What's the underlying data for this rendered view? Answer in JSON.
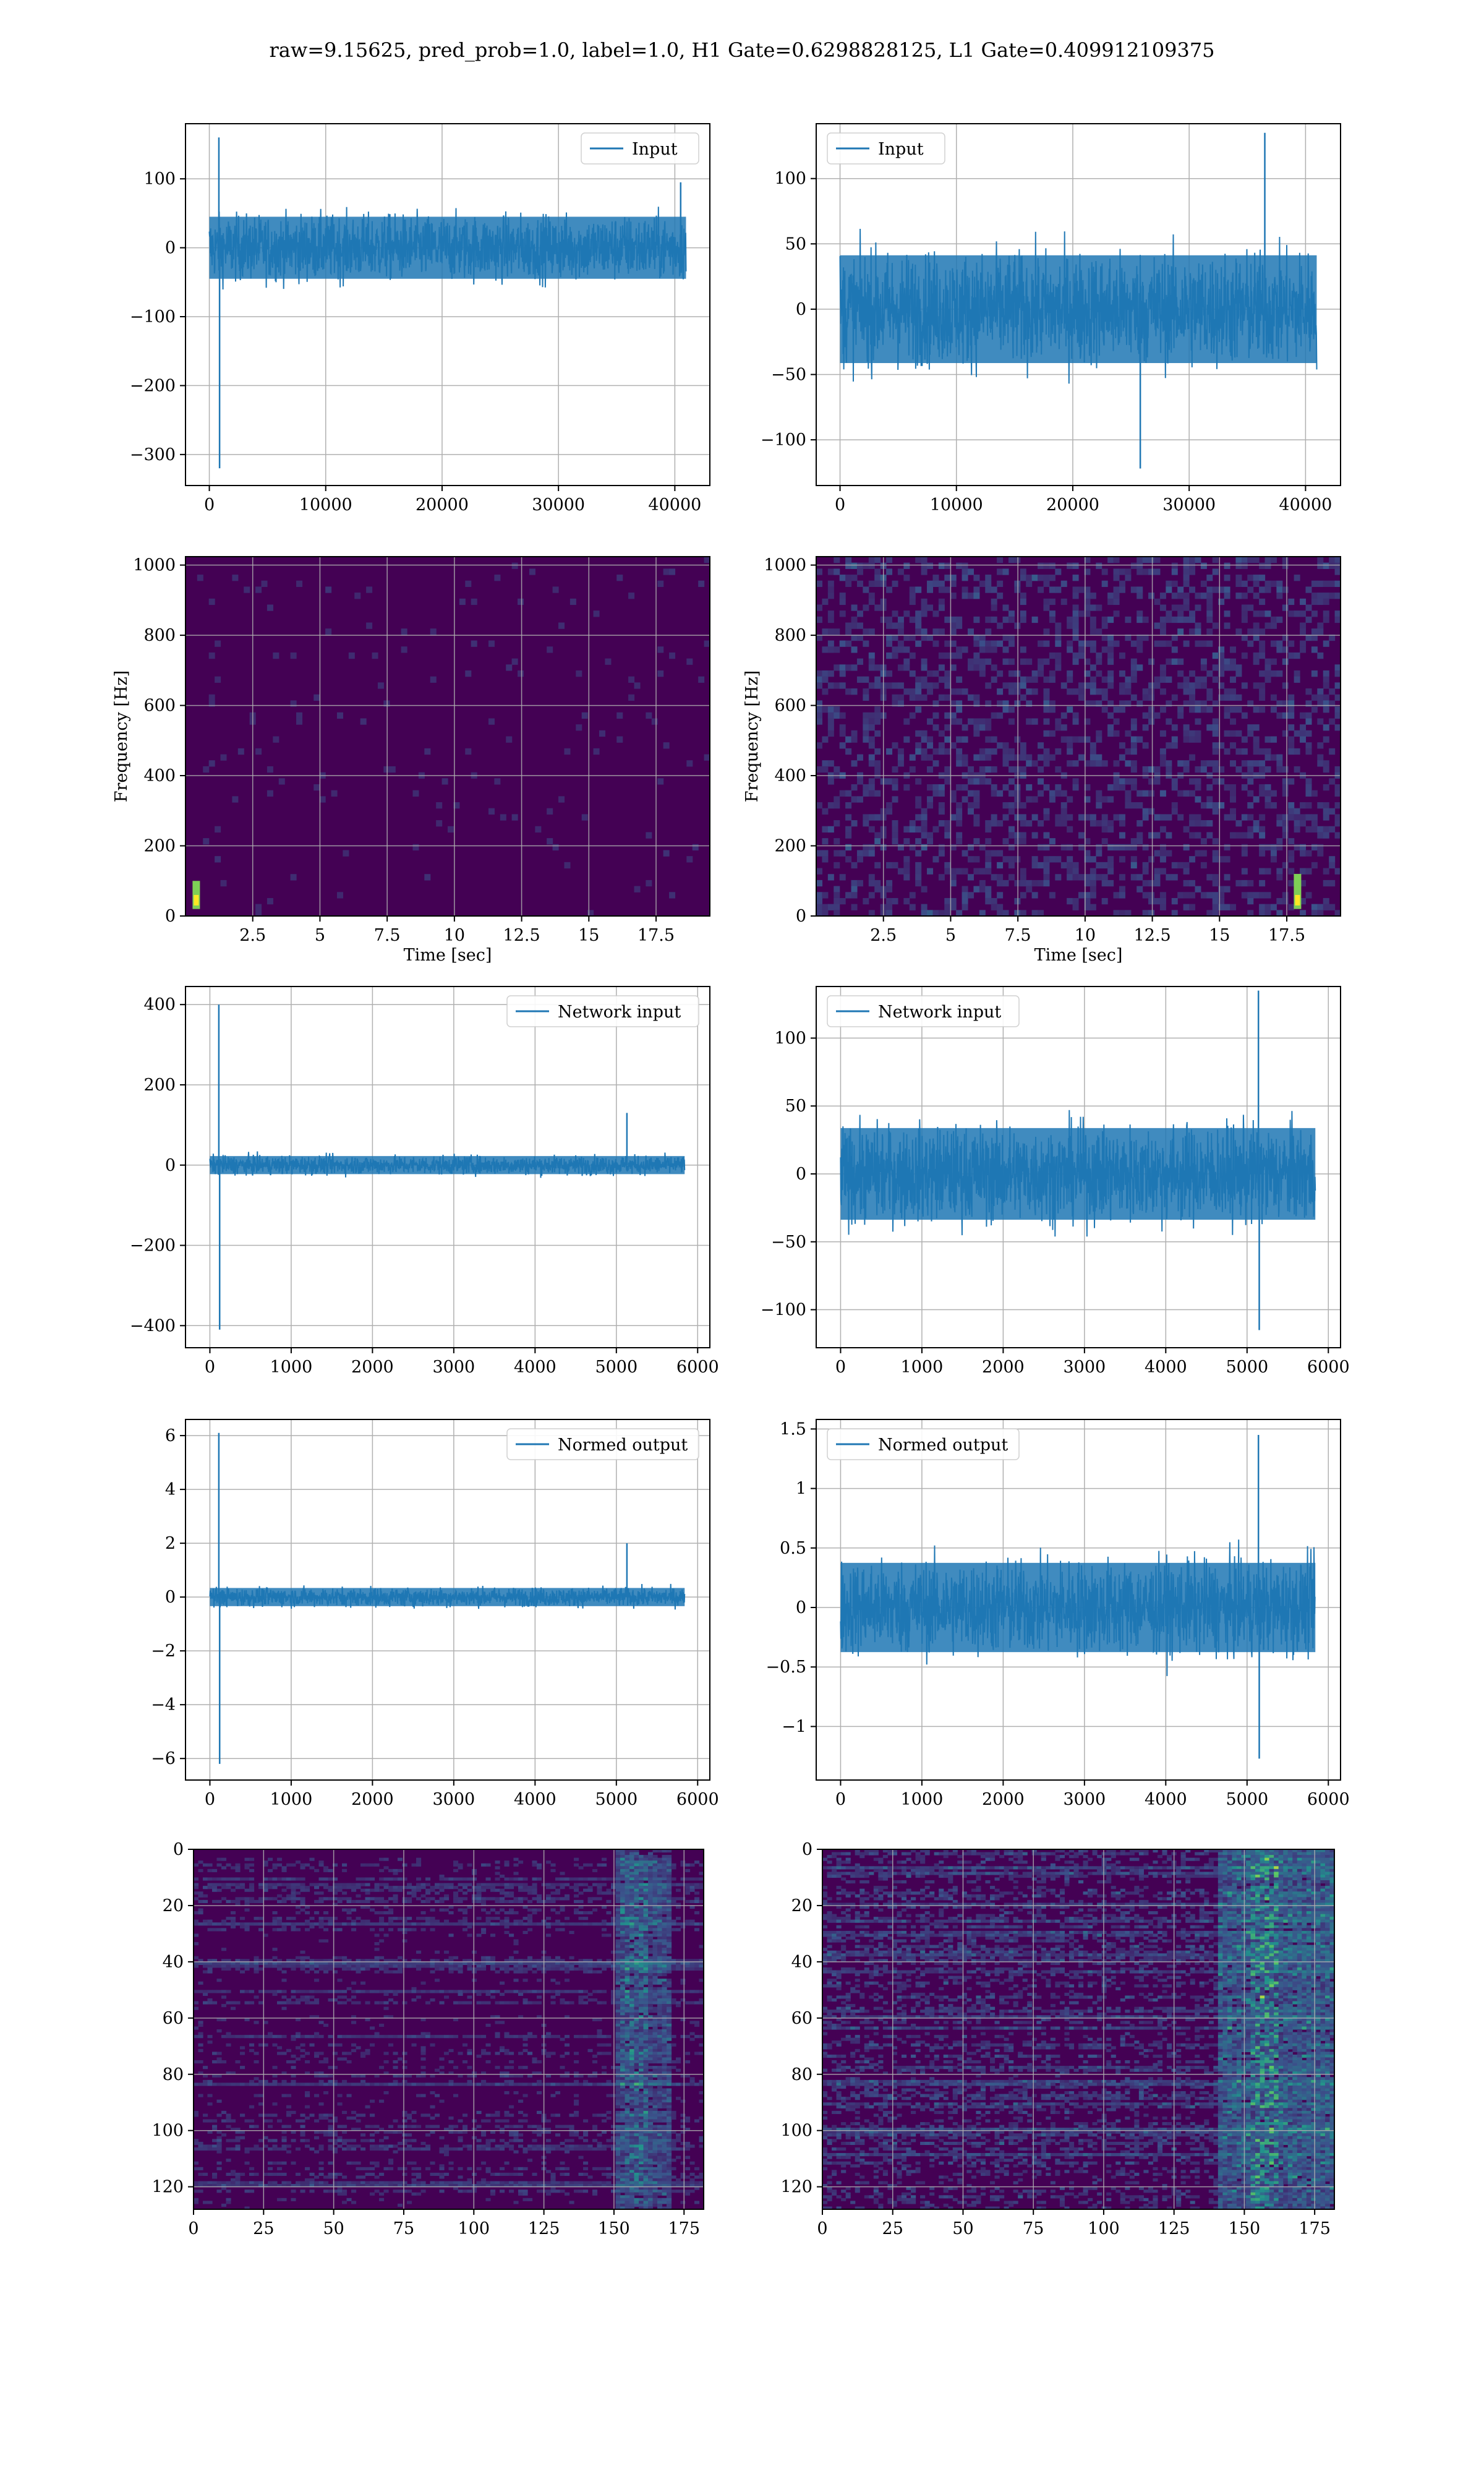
{
  "title": "raw=9.15625, pred_prob=1.0, label=1.0, H1 Gate=0.6298828125, L1 Gate=0.409912109375",
  "colors": {
    "line": "#1f77b4",
    "viridis_dark": "#440154",
    "viridis_mid": "#21918c",
    "viridis_bright": "#fde725",
    "grid": "#b0b0b0"
  },
  "chart_data": [
    {
      "id": "input-h1",
      "type": "line",
      "legend": "Input",
      "xlim": [
        -2048,
        43008
      ],
      "ylim": [
        -345,
        180
      ],
      "xticks": [
        0,
        10000,
        20000,
        30000,
        40000
      ],
      "yticks": [
        -300,
        -200,
        -100,
        0,
        100
      ],
      "series": [
        {
          "length": 40960,
          "amplitude": 60,
          "spikes": [
            {
              "x": 820,
              "y": 160
            },
            {
              "x": 880,
              "y": -320
            },
            {
              "x": 40500,
              "y": 95
            }
          ]
        }
      ]
    },
    {
      "id": "input-l1",
      "type": "line",
      "legend": "Input",
      "xlim": [
        -2048,
        43008
      ],
      "ylim": [
        -135,
        142
      ],
      "xticks": [
        0,
        10000,
        20000,
        30000,
        40000
      ],
      "yticks": [
        -100,
        -50,
        0,
        50,
        100
      ],
      "series": [
        {
          "length": 40960,
          "amplitude": 55,
          "spikes": [
            {
              "x": 36500,
              "y": 135
            },
            {
              "x": 25800,
              "y": -122
            }
          ]
        }
      ]
    },
    {
      "id": "spectrogram-h1",
      "type": "heatmap",
      "xlabel": "Time [sec]",
      "ylabel": "Frequency [Hz]",
      "xlim": [
        0,
        19.5
      ],
      "ylim": [
        0,
        1024
      ],
      "xticks": [
        2.5,
        5.0,
        7.5,
        10.0,
        12.5,
        15.0,
        17.5
      ],
      "yticks": [
        0,
        200,
        400,
        600,
        800,
        1000
      ],
      "intensity": 0.25,
      "chirp": {
        "t": 0.4,
        "f_max": 100
      }
    },
    {
      "id": "spectrogram-l1",
      "type": "heatmap",
      "xlabel": "Time [sec]",
      "ylabel": "Frequency [Hz]",
      "xlim": [
        0,
        19.5
      ],
      "ylim": [
        0,
        1024
      ],
      "xticks": [
        2.5,
        5.0,
        7.5,
        10.0,
        12.5,
        15.0,
        17.5
      ],
      "yticks": [
        0,
        200,
        400,
        600,
        800,
        1000
      ],
      "intensity": 0.55,
      "chirp": {
        "t": 17.9,
        "f_max": 120
      }
    },
    {
      "id": "network-input-h1",
      "type": "line",
      "legend": "Network input",
      "xlim": [
        -300,
        6150
      ],
      "ylim": [
        -455,
        445
      ],
      "xticks": [
        0,
        1000,
        2000,
        3000,
        4000,
        5000,
        6000
      ],
      "yticks": [
        -400,
        -200,
        0,
        200,
        400
      ],
      "series": [
        {
          "length": 5840,
          "amplitude": 30,
          "spikes": [
            {
              "x": 110,
              "y": 400
            },
            {
              "x": 120,
              "y": -410
            },
            {
              "x": 5130,
              "y": 130
            }
          ]
        }
      ]
    },
    {
      "id": "network-input-l1",
      "type": "line",
      "legend": "Network input",
      "xlim": [
        -300,
        6150
      ],
      "ylim": [
        -128,
        138
      ],
      "xticks": [
        0,
        1000,
        2000,
        3000,
        4000,
        5000,
        6000
      ],
      "yticks": [
        -100,
        -50,
        0,
        50,
        100
      ],
      "series": [
        {
          "length": 5840,
          "amplitude": 45,
          "spikes": [
            {
              "x": 5140,
              "y": 135
            },
            {
              "x": 5150,
              "y": -115
            }
          ]
        }
      ]
    },
    {
      "id": "normed-output-h1",
      "type": "line",
      "legend": "Normed output",
      "xlim": [
        -300,
        6150
      ],
      "ylim": [
        -6.8,
        6.6
      ],
      "xticks": [
        0,
        1000,
        2000,
        3000,
        4000,
        5000,
        6000
      ],
      "yticks": [
        -6,
        -4,
        -2,
        0,
        2,
        4,
        6
      ],
      "series": [
        {
          "length": 5840,
          "amplitude": 0.45,
          "spikes": [
            {
              "x": 110,
              "y": 6.1
            },
            {
              "x": 120,
              "y": -6.2
            },
            {
              "x": 5130,
              "y": 2.0
            }
          ]
        }
      ]
    },
    {
      "id": "normed-output-l1",
      "type": "line",
      "legend": "Normed output",
      "xlim": [
        -300,
        6150
      ],
      "ylim": [
        -1.45,
        1.58
      ],
      "xticks": [
        0,
        1000,
        2000,
        3000,
        4000,
        5000,
        6000
      ],
      "yticks": [
        -1.0,
        -0.5,
        0.0,
        0.5,
        1.0,
        1.5
      ],
      "series": [
        {
          "length": 5840,
          "amplitude": 0.5,
          "spikes": [
            {
              "x": 5140,
              "y": 1.45
            },
            {
              "x": 5150,
              "y": -1.27
            }
          ]
        }
      ]
    },
    {
      "id": "feature-map-h1",
      "type": "heatmap",
      "xlim": [
        0,
        182
      ],
      "ylim": [
        128,
        0
      ],
      "xticks": [
        0,
        25,
        50,
        75,
        100,
        125,
        150,
        175
      ],
      "yticks": [
        0,
        20,
        40,
        60,
        80,
        100,
        120
      ],
      "intensity": 0.35,
      "active_columns": [
        150,
        170
      ]
    },
    {
      "id": "feature-map-l1",
      "type": "heatmap",
      "xlim": [
        0,
        182
      ],
      "ylim": [
        128,
        0
      ],
      "xticks": [
        0,
        25,
        50,
        75,
        100,
        125,
        150,
        175
      ],
      "yticks": [
        0,
        20,
        40,
        60,
        80,
        100,
        120
      ],
      "intensity": 0.6,
      "active_columns": [
        140,
        182
      ]
    }
  ]
}
